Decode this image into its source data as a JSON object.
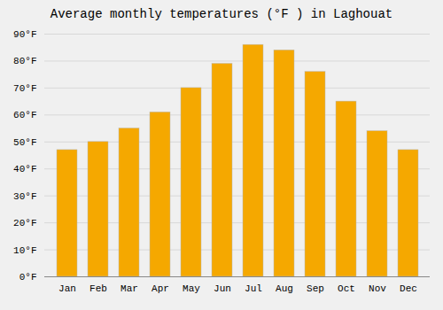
{
  "chart_data": {
    "type": "bar",
    "title": "Average monthly temperatures (°F ) in Laghouat",
    "categories": [
      "Jan",
      "Feb",
      "Mar",
      "Apr",
      "May",
      "Jun",
      "Jul",
      "Aug",
      "Sep",
      "Oct",
      "Nov",
      "Dec"
    ],
    "values": [
      47,
      50,
      55,
      61,
      70,
      79,
      86,
      84,
      76,
      65,
      54,
      47
    ],
    "color": "#F5A800",
    "ylim": [
      0,
      90
    ],
    "yticks": [
      {
        "value": 0,
        "label": "0°F"
      },
      {
        "value": 10,
        "label": "10°F"
      },
      {
        "value": 20,
        "label": "20°F"
      },
      {
        "value": 30,
        "label": "30°F"
      },
      {
        "value": 40,
        "label": "40°F"
      },
      {
        "value": 50,
        "label": "50°F"
      },
      {
        "value": 60,
        "label": "60°F"
      },
      {
        "value": 70,
        "label": "70°F"
      },
      {
        "value": 80,
        "label": "80°F"
      },
      {
        "value": 90,
        "label": "90°F"
      }
    ],
    "grid": true
  }
}
